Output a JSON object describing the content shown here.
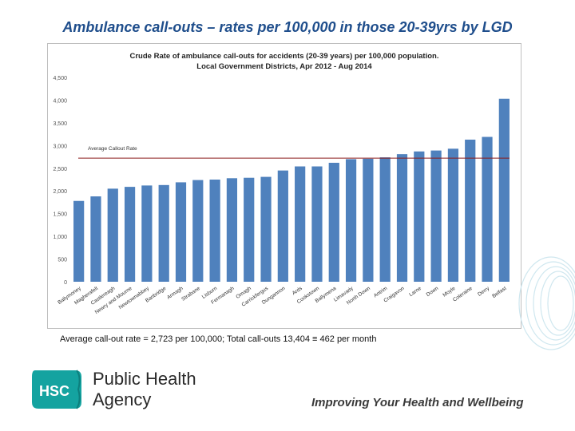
{
  "slide": {
    "title": "Ambulance call-outs – rates per 100,000 in those 20-39yrs by LGD",
    "note": "Average call-out rate = 2,723 per 100,000; Total call-outs 13,404 ≡ 462 per month"
  },
  "logo": {
    "badge": "HSC",
    "line1": "Public Health",
    "line2": "Agency"
  },
  "tagline": "Improving Your Health and Wellbeing",
  "colors": {
    "bar": "#4f81bd",
    "average_line": "#8b1a1a",
    "title_blue": "#1f4e8c",
    "logo_teal": "#14a3a0"
  },
  "chart_data": {
    "type": "bar",
    "title": "Crude Rate of ambulance call-outs for accidents (20-39 years) per 100,000 population. Local Government Districts, Apr 2012 - Aug 2014",
    "categories": [
      "Ballymoney",
      "Magherafelt",
      "Castlereagh",
      "Newry and Mourne",
      "Newtownabbey",
      "Banbridge",
      "Armagh",
      "Strabane",
      "Lisburn",
      "Fermanagh",
      "Omagh",
      "Carrickfergus",
      "Dungannon",
      "Ards",
      "Cookstown",
      "Ballymena",
      "Limavady",
      "North Down",
      "Antrim",
      "Craigavon",
      "Larne",
      "Down",
      "Moyle",
      "Coleraine",
      "Derry",
      "Belfast"
    ],
    "values": [
      1780,
      1880,
      2050,
      2090,
      2120,
      2130,
      2190,
      2240,
      2250,
      2280,
      2290,
      2310,
      2450,
      2540,
      2540,
      2620,
      2700,
      2710,
      2740,
      2810,
      2870,
      2890,
      2930,
      3130,
      3190,
      4030
    ],
    "ylim": [
      0,
      4500
    ],
    "yticks": [
      "0",
      "500",
      "1,000",
      "1,500",
      "2,000",
      "2,500",
      "3,000",
      "3,500",
      "4,000",
      "4,500"
    ],
    "ytick_values": [
      0,
      500,
      1000,
      1500,
      2000,
      2500,
      3000,
      3500,
      4000,
      4500
    ],
    "average": {
      "label": "Average Callout Rate",
      "value": 2723
    },
    "grid": false,
    "legend": "none",
    "xlabel": "",
    "ylabel": ""
  }
}
